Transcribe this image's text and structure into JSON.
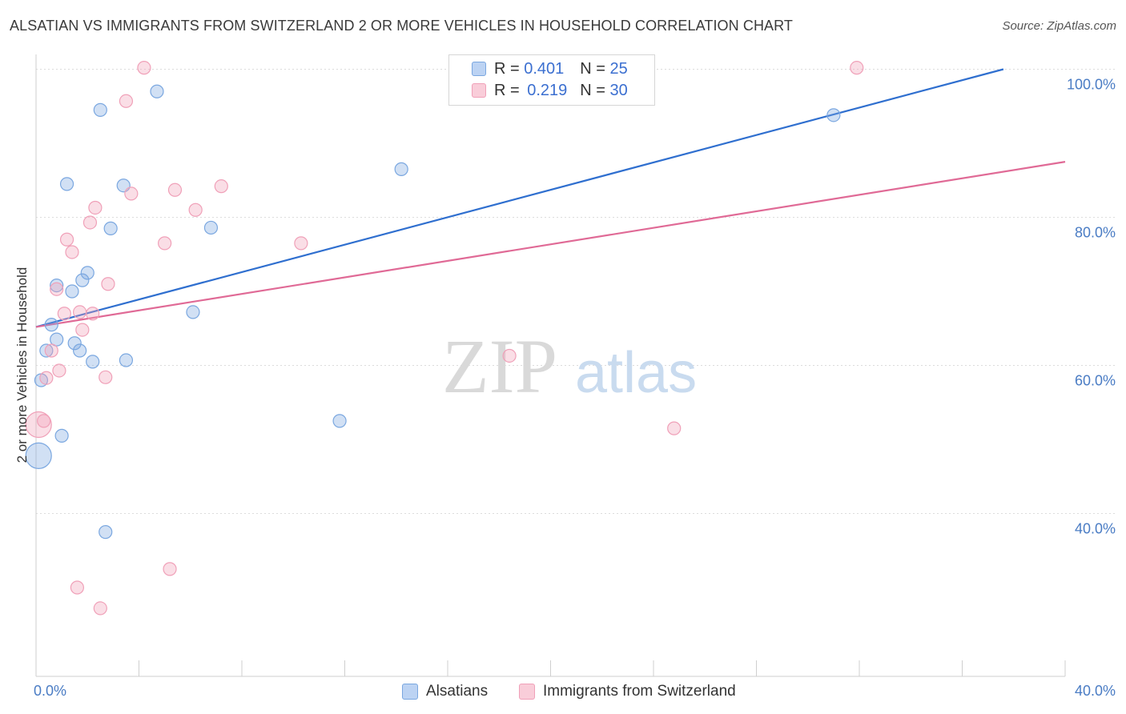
{
  "title": "ALSATIAN VS IMMIGRANTS FROM SWITZERLAND 2 OR MORE VEHICLES IN HOUSEHOLD CORRELATION CHART",
  "source": "Source: ZipAtlas.com",
  "watermark": {
    "zip": "ZIP",
    "atlas": "atlas"
  },
  "legend": {
    "rows": [
      {
        "r_label": "R = ",
        "r_value": "0.401",
        "n_label": "N = ",
        "n_value": "25"
      },
      {
        "r_label": "R = ",
        "r_value": "0.219",
        "n_label": "N = ",
        "n_value": "30"
      }
    ]
  },
  "chart_data": {
    "type": "scatter",
    "title": "ALSATIAN VS IMMIGRANTS FROM SWITZERLAND 2 OR MORE VEHICLES IN HOUSEHOLD CORRELATION CHART",
    "xlabel": "",
    "ylabel": "2 or more Vehicles in Household",
    "xlim": [
      0,
      40
    ],
    "ylim": [
      18,
      102
    ],
    "x_tick_labels": [
      {
        "value": 0,
        "label": "0.0%"
      },
      {
        "value": 40,
        "label": "40.0%"
      }
    ],
    "y_tick_labels": [
      {
        "value": 100,
        "label": "100.0%"
      },
      {
        "value": 80,
        "label": "80.0%"
      },
      {
        "value": 60,
        "label": "60.0%"
      },
      {
        "value": 40,
        "label": "40.0%"
      }
    ],
    "colors": {
      "alsatians": "#7aa7e0",
      "alsatians_line": "#2f6fcf",
      "swiss": "#f0a0b8",
      "swiss_line": "#e06a96"
    },
    "series": [
      {
        "name": "Alsatians",
        "r": 0.401,
        "n": 25,
        "trend": {
          "x0": 0,
          "y0": 65.2,
          "x1": 37.6,
          "y1": 100
        },
        "points": [
          {
            "x": 0.1,
            "y": 47.8,
            "size": "large"
          },
          {
            "x": 0.2,
            "y": 58.0
          },
          {
            "x": 0.4,
            "y": 62.0
          },
          {
            "x": 0.6,
            "y": 65.5
          },
          {
            "x": 0.8,
            "y": 70.8
          },
          {
            "x": 0.8,
            "y": 63.5
          },
          {
            "x": 1.0,
            "y": 50.5
          },
          {
            "x": 1.2,
            "y": 84.5
          },
          {
            "x": 1.4,
            "y": 70.0
          },
          {
            "x": 1.5,
            "y": 63.0
          },
          {
            "x": 1.7,
            "y": 62.0
          },
          {
            "x": 1.8,
            "y": 71.5
          },
          {
            "x": 2.0,
            "y": 72.5
          },
          {
            "x": 2.2,
            "y": 60.5
          },
          {
            "x": 2.5,
            "y": 94.5
          },
          {
            "x": 2.7,
            "y": 37.5
          },
          {
            "x": 2.9,
            "y": 78.5
          },
          {
            "x": 3.4,
            "y": 84.3
          },
          {
            "x": 3.5,
            "y": 60.7
          },
          {
            "x": 4.7,
            "y": 97.0
          },
          {
            "x": 6.1,
            "y": 67.2
          },
          {
            "x": 6.8,
            "y": 78.6
          },
          {
            "x": 11.8,
            "y": 52.5
          },
          {
            "x": 14.2,
            "y": 86.5
          },
          {
            "x": 31.0,
            "y": 93.8
          }
        ]
      },
      {
        "name": "Immigrants from Switzerland",
        "r": 0.219,
        "n": 30,
        "trend": {
          "x0": 0,
          "y0": 65.2,
          "x1": 40,
          "y1": 87.5
        },
        "points": [
          {
            "x": 0.1,
            "y": 52.0,
            "size": "large"
          },
          {
            "x": 0.3,
            "y": 52.5
          },
          {
            "x": 0.4,
            "y": 58.3
          },
          {
            "x": 0.6,
            "y": 62.0
          },
          {
            "x": 0.8,
            "y": 70.3
          },
          {
            "x": 0.9,
            "y": 59.3
          },
          {
            "x": 1.1,
            "y": 67.0
          },
          {
            "x": 1.2,
            "y": 77.0
          },
          {
            "x": 1.4,
            "y": 75.3
          },
          {
            "x": 1.6,
            "y": 30.0
          },
          {
            "x": 1.7,
            "y": 67.2
          },
          {
            "x": 1.8,
            "y": 64.8
          },
          {
            "x": 2.1,
            "y": 79.3
          },
          {
            "x": 2.2,
            "y": 67.0
          },
          {
            "x": 2.3,
            "y": 81.3
          },
          {
            "x": 2.5,
            "y": 27.2
          },
          {
            "x": 2.7,
            "y": 58.4
          },
          {
            "x": 2.8,
            "y": 71.0
          },
          {
            "x": 3.5,
            "y": 95.7
          },
          {
            "x": 3.7,
            "y": 83.2
          },
          {
            "x": 4.2,
            "y": 100.2
          },
          {
            "x": 5.0,
            "y": 76.5
          },
          {
            "x": 5.2,
            "y": 32.5
          },
          {
            "x": 5.4,
            "y": 83.7
          },
          {
            "x": 6.2,
            "y": 81.0
          },
          {
            "x": 7.2,
            "y": 84.2
          },
          {
            "x": 10.3,
            "y": 76.5
          },
          {
            "x": 18.4,
            "y": 61.3
          },
          {
            "x": 24.8,
            "y": 51.5
          },
          {
            "x": 31.9,
            "y": 100.2
          }
        ]
      }
    ]
  }
}
